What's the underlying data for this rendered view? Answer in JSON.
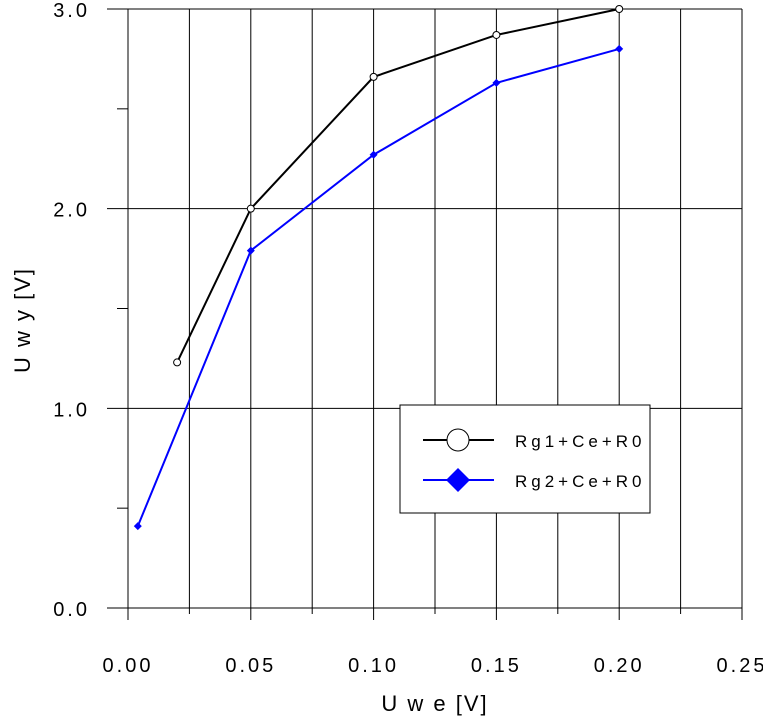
{
  "chart_data": {
    "type": "line",
    "title": "",
    "xlabel": "U w e [V]",
    "ylabel": "U w y [V]",
    "xlim": [
      0,
      0.25
    ],
    "ylim": [
      0,
      3.0
    ],
    "x_ticks": [
      "0.00",
      "0.05",
      "0.10",
      "0.15",
      "0.20",
      "0.25"
    ],
    "x_tick_values": [
      0,
      0.05,
      0.1,
      0.15,
      0.2,
      0.25
    ],
    "y_ticks": [
      "0.0",
      "1.0",
      "2.0",
      "3.0"
    ],
    "y_tick_values": [
      0,
      1,
      2,
      3
    ],
    "grid": true,
    "legend_position": "center-right",
    "series": [
      {
        "name": "Rg1+Ce+R0",
        "color": "#000000",
        "marker": "circle",
        "x": [
          0.02,
          0.05,
          0.1,
          0.15,
          0.2
        ],
        "y": [
          1.23,
          2.0,
          2.66,
          2.87,
          3.0
        ]
      },
      {
        "name": "Rg2+Ce+R0",
        "color": "#0000ff",
        "marker": "diamond",
        "x": [
          0.004,
          0.05,
          0.1,
          0.15,
          0.2
        ],
        "y": [
          0.41,
          1.79,
          2.27,
          2.63,
          2.8
        ]
      }
    ]
  }
}
